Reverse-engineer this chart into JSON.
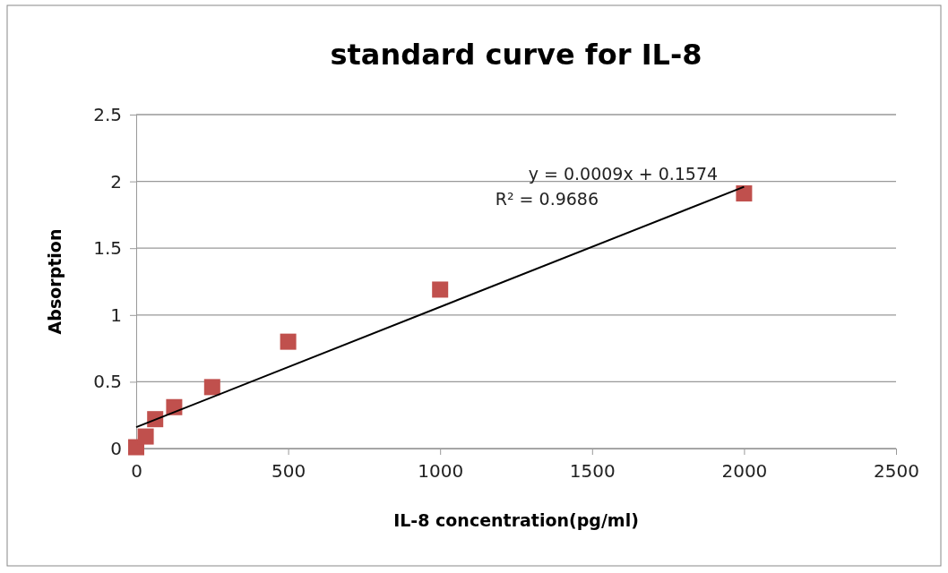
{
  "chart_data": {
    "type": "scatter",
    "title": "standard curve for IL-8",
    "xlabel": "IL-8 concentration(pg/ml)",
    "ylabel": "Absorption",
    "xlim": [
      0,
      2500
    ],
    "xticks": [
      0,
      500,
      1000,
      1500,
      2000,
      2500
    ],
    "ylim": [
      0,
      2.5
    ],
    "yticks": [
      0,
      0.5,
      1,
      1.5,
      2,
      2.5
    ],
    "grid": "y",
    "marker": "square",
    "series": [
      {
        "color": "#c0504d",
        "x": [
          0,
          31.25,
          62.5,
          125,
          250,
          500,
          1000,
          2000
        ],
        "values": [
          0.01,
          0.09,
          0.22,
          0.31,
          0.46,
          0.8,
          1.19,
          1.91
        ]
      },
      {
        "type": "line",
        "color": "#000000",
        "line_style": "solid",
        "marker": "none",
        "x": [
          0,
          2000
        ],
        "values": [
          0.16,
          1.96
        ]
      }
    ],
    "annotations": [
      "y = 0.0009x + 0.1574",
      "R² = 0.9686"
    ]
  }
}
